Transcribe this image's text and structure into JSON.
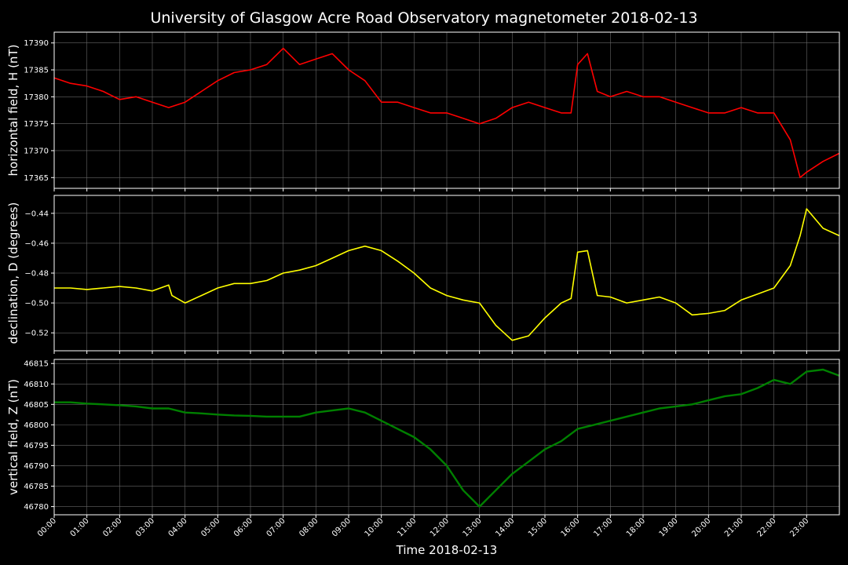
{
  "chart_data": {
    "title": "University of Glasgow Acre Road Observatory magnetometer 2018-02-13",
    "xlabel": "Time 2018-02-13",
    "x_ticks": [
      "00:00",
      "01:00",
      "02:00",
      "03:00",
      "04:00",
      "05:00",
      "06:00",
      "07:00",
      "08:00",
      "09:00",
      "10:00",
      "11:00",
      "12:00",
      "13:00",
      "14:00",
      "15:00",
      "16:00",
      "17:00",
      "18:00",
      "19:00",
      "20:00",
      "21:00",
      "22:00",
      "23:00"
    ],
    "xlim_hours": [
      0,
      24
    ],
    "grid": true,
    "panels": [
      {
        "type": "line",
        "ylabel": "horizontal field, H (nT)",
        "color": "#ff0000",
        "ylim": [
          17363,
          17392
        ],
        "yticks": [
          17365,
          17370,
          17375,
          17380,
          17385,
          17390
        ],
        "ytick_labels": [
          "17365",
          "17370",
          "17375",
          "17380",
          "17385",
          "17390"
        ],
        "x": [
          0,
          0.5,
          1,
          1.5,
          2,
          2.5,
          3,
          3.5,
          4,
          4.5,
          5,
          5.5,
          6,
          6.5,
          7,
          7.5,
          8,
          8.5,
          9,
          9.5,
          10,
          10.5,
          11,
          11.5,
          12,
          12.5,
          13,
          13.5,
          14,
          14.5,
          15,
          15.5,
          15.8,
          16,
          16.3,
          16.6,
          17,
          17.5,
          18,
          18.5,
          19,
          19.5,
          20,
          20.5,
          21,
          21.5,
          22,
          22.5,
          22.8,
          23,
          23.5,
          24
        ],
        "y": [
          17383.5,
          17382.5,
          17382,
          17381,
          17379.5,
          17380,
          17379,
          17378,
          17379,
          17381,
          17383,
          17384.5,
          17385,
          17386,
          17389,
          17386,
          17387,
          17388,
          17385,
          17383,
          17379,
          17379,
          17378,
          17377,
          17377,
          17376,
          17375,
          17376,
          17378,
          17379,
          17378,
          17377,
          17377,
          17386,
          17388,
          17381,
          17380,
          17381,
          17380,
          17380,
          17379,
          17378,
          17377,
          17377,
          17378,
          17377,
          17377,
          17372,
          17365,
          17366,
          17368,
          17369.5
        ]
      },
      {
        "type": "line",
        "ylabel": "declination, D (degrees)",
        "color": "#ffff00",
        "ylim": [
          -0.532,
          -0.428
        ],
        "yticks": [
          -0.52,
          -0.5,
          -0.48,
          -0.46,
          -0.44
        ],
        "ytick_labels": [
          "−0.52",
          "−0.50",
          "−0.48",
          "−0.46",
          "−0.44"
        ],
        "x": [
          0,
          0.5,
          1,
          1.5,
          2,
          2.5,
          3,
          3.5,
          3.6,
          4,
          4.5,
          5,
          5.5,
          6,
          6.5,
          7,
          7.5,
          8,
          8.5,
          9,
          9.5,
          10,
          10.5,
          11,
          11.5,
          12,
          12.5,
          13,
          13.5,
          14,
          14.5,
          15,
          15.5,
          15.8,
          16,
          16.3,
          16.6,
          17,
          17.5,
          18,
          18.5,
          19,
          19.5,
          20,
          20.5,
          21,
          21.5,
          22,
          22.5,
          22.8,
          23,
          23.5,
          24
        ],
        "y": [
          -0.49,
          -0.49,
          -0.491,
          -0.49,
          -0.489,
          -0.49,
          -0.492,
          -0.488,
          -0.495,
          -0.5,
          -0.495,
          -0.49,
          -0.487,
          -0.487,
          -0.485,
          -0.48,
          -0.478,
          -0.475,
          -0.47,
          -0.465,
          -0.462,
          -0.465,
          -0.472,
          -0.48,
          -0.49,
          -0.495,
          -0.498,
          -0.5,
          -0.515,
          -0.525,
          -0.522,
          -0.51,
          -0.5,
          -0.497,
          -0.466,
          -0.465,
          -0.495,
          -0.496,
          -0.5,
          -0.498,
          -0.496,
          -0.5,
          -0.508,
          -0.507,
          -0.505,
          -0.498,
          -0.494,
          -0.49,
          -0.475,
          -0.455,
          -0.437,
          -0.45,
          -0.455
        ]
      },
      {
        "type": "line",
        "ylabel": "vertical field, Z (nT)",
        "color": "#008000",
        "ylim": [
          46778,
          46816
        ],
        "yticks": [
          46780,
          46785,
          46790,
          46795,
          46800,
          46805,
          46810,
          46815
        ],
        "ytick_labels": [
          "46780",
          "46785",
          "46790",
          "46795",
          "46800",
          "46805",
          "46810",
          "46815"
        ],
        "x": [
          0,
          0.5,
          1,
          1.5,
          2,
          2.5,
          3,
          3.5,
          4,
          4.5,
          5,
          5.5,
          6,
          6.5,
          7,
          7.5,
          8,
          8.5,
          9,
          9.5,
          10,
          10.5,
          11,
          11.5,
          12,
          12.5,
          13,
          13.5,
          14,
          14.5,
          15,
          15.5,
          16,
          16.5,
          17,
          17.5,
          18,
          18.5,
          19,
          19.5,
          20,
          20.5,
          21,
          21.5,
          22,
          22.5,
          23,
          23.5,
          24
        ],
        "y": [
          46805.5,
          46805.5,
          46805.2,
          46805,
          46804.8,
          46804.5,
          46804,
          46804,
          46803,
          46802.8,
          46802.5,
          46802.3,
          46802.2,
          46802,
          46802,
          46802,
          46803,
          46803.5,
          46804,
          46803,
          46801,
          46799,
          46797,
          46794,
          46790,
          46784,
          46780,
          46784,
          46788,
          46791,
          46794,
          46796,
          46799,
          46800,
          46801,
          46802,
          46803,
          46804,
          46804.5,
          46805,
          46806,
          46807,
          46807.5,
          46809,
          46811,
          46810,
          46813,
          46813.5,
          46812
        ]
      }
    ]
  }
}
